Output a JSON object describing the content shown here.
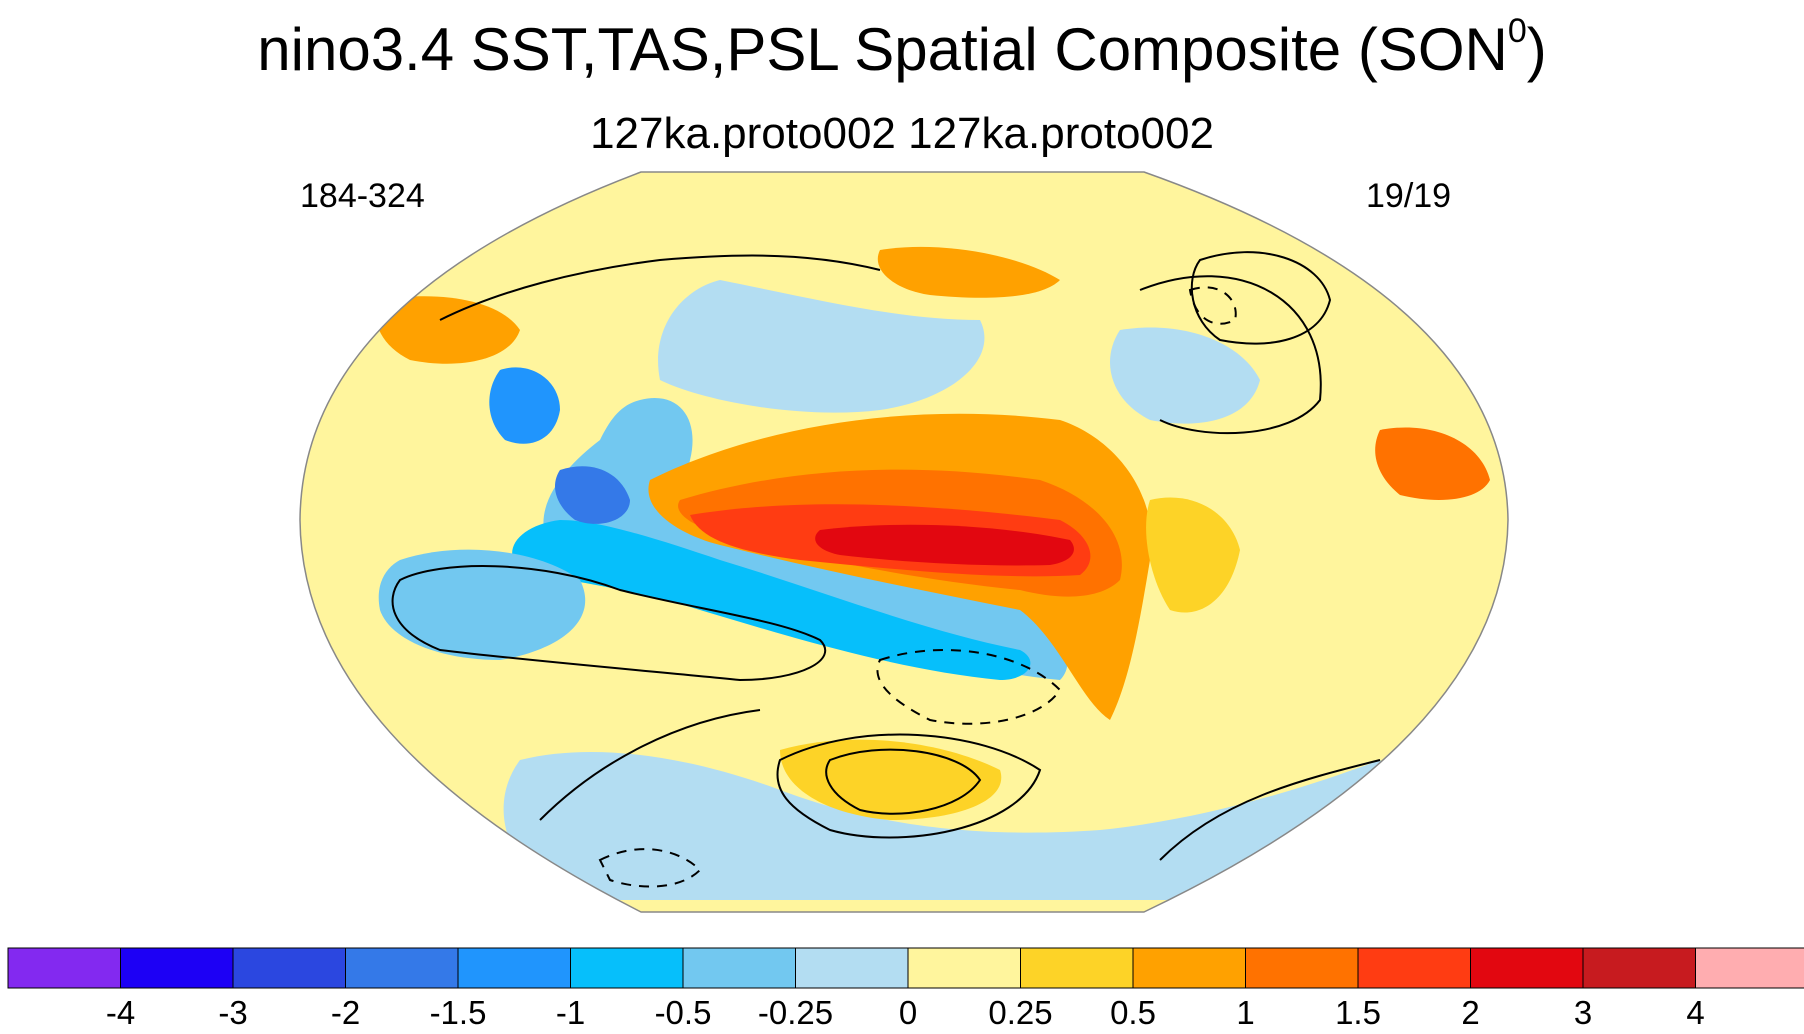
{
  "title": {
    "main": "nino3.4 SST,TAS,PSL Spatial Composite (SON",
    "superscript": "0",
    "close": ")"
  },
  "subtitle": "127ka.proto002  127ka.proto002",
  "left_string": "184-324",
  "right_string": "19/19",
  "colorbar": {
    "colors": [
      "#8329f0",
      "#1d00f5",
      "#2b47e0",
      "#3479e8",
      "#2095fd",
      "#06bffb",
      "#72c8f0",
      "#b3ddf2",
      "#fff59d",
      "#fdd327",
      "#ffa100",
      "#ff7200",
      "#ff3c12",
      "#e20710",
      "#c71b1f",
      "#ffadb0"
    ],
    "labels": [
      "-4",
      "-3",
      "-2",
      "-1.5",
      "-1",
      "-0.5",
      "-0.25",
      "0",
      "0.25",
      "0.5",
      "1",
      "1.5",
      "2",
      "3",
      "4"
    ]
  },
  "map": {
    "projection": "robinson",
    "center_longitude": 180,
    "land_outline_color": "#ffffff",
    "contour_color": "#000000"
  }
}
